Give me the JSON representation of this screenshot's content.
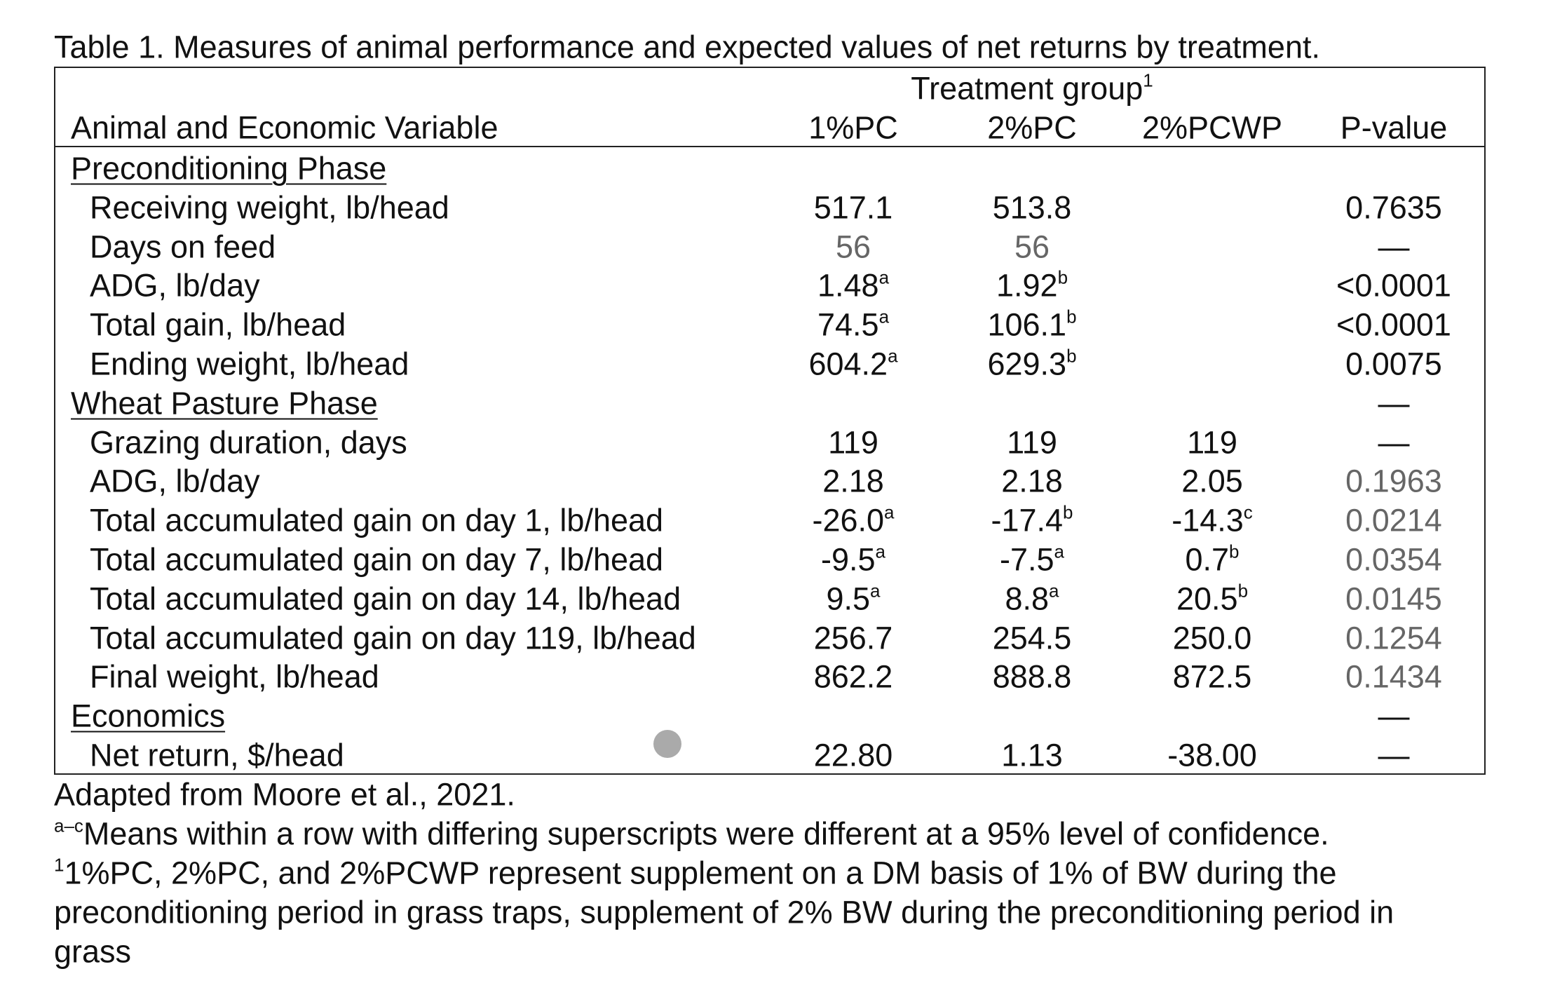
{
  "title": "Table 1. Measures of animal performance and expected values of net returns by treatment.",
  "header": {
    "group": {
      "text": "Treatment group",
      "sup": "1"
    },
    "variable": "Animal and Economic Variable",
    "columns": [
      "1%PC",
      "2%PC",
      "2%PCWP",
      "P-value"
    ]
  },
  "sections": [
    {
      "title": "Preconditioning Phase",
      "p_value": null,
      "rows": [
        {
          "label": "Receiving weight, lb/head",
          "cells": [
            {
              "text": "517.1"
            },
            {
              "text": "513.8"
            },
            null,
            {
              "text": "0.7635"
            }
          ]
        },
        {
          "label": "Days on feed",
          "cells": [
            {
              "text": "56"
            },
            {
              "text": "56"
            },
            null,
            {
              "text": "—"
            }
          ]
        },
        {
          "label": "ADG, lb/day",
          "cells": [
            {
              "text": "1.48",
              "sup": "a"
            },
            {
              "text": "1.92",
              "sup": "b"
            },
            null,
            {
              "text": "<0.0001"
            }
          ]
        },
        {
          "label": "Total gain, lb/head",
          "cells": [
            {
              "text": "74.5",
              "sup": "a"
            },
            {
              "text": "106.1",
              "sup": "b"
            },
            null,
            {
              "text": "<0.0001"
            }
          ]
        },
        {
          "label": "Ending weight, lb/head",
          "cells": [
            {
              "text": "604.2",
              "sup": "a"
            },
            {
              "text": "629.3",
              "sup": "b"
            },
            null,
            {
              "text": "0.0075"
            }
          ]
        }
      ]
    },
    {
      "title": "Wheat Pasture Phase",
      "p_value": "—",
      "rows": [
        {
          "label": "Grazing duration, days",
          "cells": [
            {
              "text": "119"
            },
            {
              "text": "119"
            },
            {
              "text": "119"
            },
            {
              "text": "—"
            }
          ]
        },
        {
          "label": "ADG, lb/day",
          "cells": [
            {
              "text": "2.18"
            },
            {
              "text": "2.18"
            },
            {
              "text": "2.05"
            },
            {
              "text": "0.1963"
            }
          ]
        },
        {
          "label": "Total accumulated gain on day 1, lb/head",
          "cells": [
            {
              "text": "-26.0",
              "sup": "a"
            },
            {
              "text": "-17.4",
              "sup": "b"
            },
            {
              "text": "-14.3",
              "sup": "c"
            },
            {
              "text": "0.0214"
            }
          ]
        },
        {
          "label": "Total accumulated gain on day 7, lb/head",
          "cells": [
            {
              "text": "-9.5",
              "sup": "a"
            },
            {
              "text": "-7.5",
              "sup": "a"
            },
            {
              "text": "0.7",
              "sup": "b"
            },
            {
              "text": "0.0354"
            }
          ]
        },
        {
          "label": "Total accumulated gain on day 14, lb/head",
          "cells": [
            {
              "text": "9.5",
              "sup": "a"
            },
            {
              "text": "8.8",
              "sup": "a"
            },
            {
              "text": "20.5",
              "sup": "b"
            },
            {
              "text": "0.0145"
            }
          ]
        },
        {
          "label": "Total accumulated gain on day 119, lb/head",
          "cells": [
            {
              "text": "256.7"
            },
            {
              "text": "254.5"
            },
            {
              "text": "250.0"
            },
            {
              "text": "0.1254"
            }
          ]
        },
        {
          "label": "Final weight, lb/head",
          "cells": [
            {
              "text": "862.2"
            },
            {
              "text": "888.8"
            },
            {
              "text": "872.5"
            },
            {
              "text": "0.1434"
            }
          ]
        }
      ]
    },
    {
      "title": "Economics",
      "p_value": "—",
      "rows": [
        {
          "label": "Net return, $/head",
          "cells": [
            {
              "text": "22.80"
            },
            {
              "text": "1.13"
            },
            {
              "text": "-38.00"
            },
            {
              "text": "—"
            }
          ]
        }
      ]
    }
  ],
  "footnotes": {
    "source": "Adapted from Moore et al., 2021.",
    "significance": {
      "sup": "a–c",
      "text": "Means within a row with differing superscripts were different at a 95% level of confidence."
    },
    "treatments": {
      "sup": "1",
      "lines": [
        "1%PC, 2%PC, and 2%PCWP represent supplement on a DM basis of 1% of BW during the",
        "preconditioning period in grass traps, supplement of 2% BW during the preconditioning period in",
        "grass"
      ]
    }
  }
}
